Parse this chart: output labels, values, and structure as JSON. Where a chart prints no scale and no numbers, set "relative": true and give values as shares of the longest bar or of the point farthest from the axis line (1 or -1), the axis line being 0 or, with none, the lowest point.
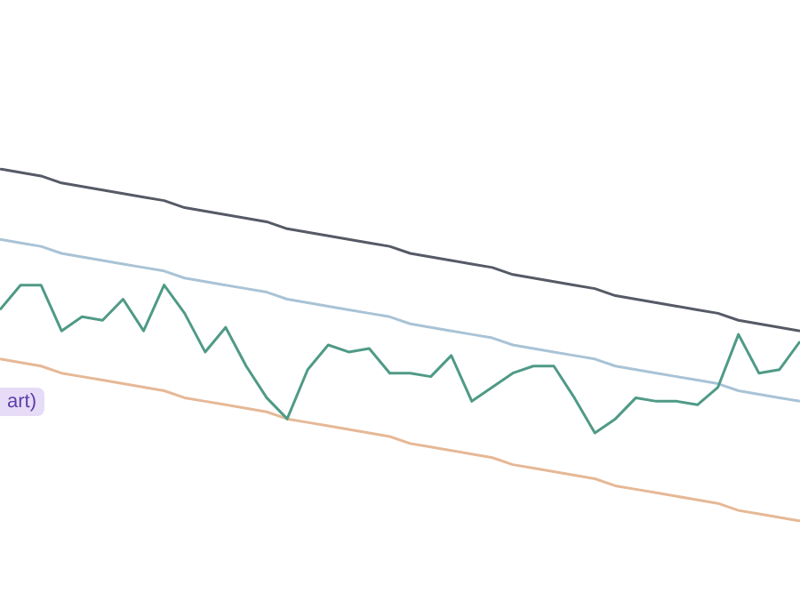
{
  "chart_data": {
    "type": "line",
    "relative": true,
    "legend": false,
    "grid": false,
    "tick_labels": false,
    "categories": [
      null,
      null,
      null,
      null,
      null,
      null,
      null,
      null,
      null,
      null,
      null,
      null,
      null,
      null,
      null,
      null,
      null,
      null,
      null,
      null,
      null,
      null,
      null,
      null,
      null,
      null,
      null,
      null,
      null,
      null,
      null,
      null,
      null,
      null,
      null,
      null,
      null,
      null,
      null,
      null
    ],
    "series": [
      {
        "color": "#4f9a86",
        "values": [
          0.6,
          0.67,
          0.67,
          0.54,
          0.58,
          0.57,
          0.63,
          0.54,
          0.67,
          0.59,
          0.48,
          0.55,
          0.44,
          0.35,
          0.29,
          0.43,
          0.5,
          0.48,
          0.49,
          0.42,
          0.42,
          0.41,
          0.47,
          0.34,
          0.38,
          0.42,
          0.44,
          0.44,
          0.35,
          0.25,
          0.29,
          0.35,
          0.34,
          0.34,
          0.33,
          0.38,
          0.53,
          0.42,
          0.43,
          0.51
        ]
      },
      {
        "color": "#555a66",
        "values": [
          1.0,
          0.99,
          0.98,
          0.96,
          0.95,
          0.94,
          0.93,
          0.92,
          0.91,
          0.89,
          0.88,
          0.87,
          0.86,
          0.85,
          0.83,
          0.82,
          0.81,
          0.8,
          0.79,
          0.78,
          0.76,
          0.75,
          0.74,
          0.73,
          0.72,
          0.7,
          0.69,
          0.68,
          0.67,
          0.66,
          0.64,
          0.63,
          0.62,
          0.61,
          0.6,
          0.59,
          0.57,
          0.56,
          0.55,
          0.54
        ]
      },
      {
        "color": "#a9c3d6",
        "values": [
          0.8,
          0.79,
          0.78,
          0.76,
          0.75,
          0.74,
          0.73,
          0.72,
          0.71,
          0.69,
          0.68,
          0.67,
          0.66,
          0.65,
          0.63,
          0.62,
          0.61,
          0.6,
          0.59,
          0.58,
          0.56,
          0.55,
          0.54,
          0.53,
          0.52,
          0.5,
          0.49,
          0.48,
          0.47,
          0.46,
          0.44,
          0.43,
          0.42,
          0.41,
          0.4,
          0.39,
          0.37,
          0.36,
          0.35,
          0.34
        ]
      },
      {
        "color": "#e6b896",
        "values": [
          0.46,
          0.45,
          0.44,
          0.42,
          0.41,
          0.4,
          0.39,
          0.38,
          0.37,
          0.35,
          0.34,
          0.33,
          0.32,
          0.31,
          0.29,
          0.28,
          0.27,
          0.26,
          0.25,
          0.24,
          0.22,
          0.21,
          0.2,
          0.19,
          0.18,
          0.16,
          0.15,
          0.14,
          0.13,
          0.12,
          0.1,
          0.09,
          0.08,
          0.07,
          0.06,
          0.05,
          0.03,
          0.02,
          0.01,
          0.0
        ]
      }
    ],
    "annotations": [
      "art)"
    ]
  }
}
